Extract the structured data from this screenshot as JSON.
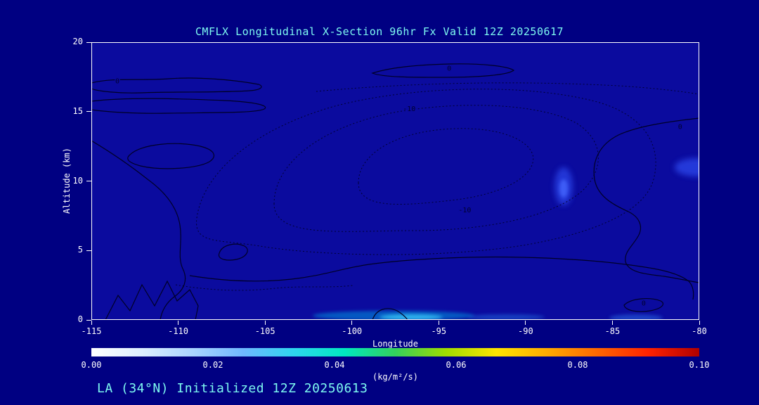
{
  "colors": {
    "background": "#000082",
    "plot_bg": "#0b0b9e",
    "title_text": "#7df9f0",
    "axis_text": "#ffffff",
    "footer_text": "#7df9f0",
    "contour_line": "#000026"
  },
  "chart_data": {
    "type": "contour",
    "title": "CMFLX Longitudinal X-Section 96hr  Fx Valid 12Z 20250617",
    "xlabel": "Longitude",
    "ylabel": "Altitude (km)",
    "xlim": [
      -115,
      -80
    ],
    "ylim": [
      0,
      20
    ],
    "x_ticks": [
      "-115",
      "-110",
      "-105",
      "-100",
      "-95",
      "-90",
      "-85",
      "-80"
    ],
    "y_ticks": [
      "20",
      "15",
      "10",
      "5",
      "0"
    ],
    "grid": false,
    "contour_levels_labeled": [
      "0",
      "-10"
    ],
    "contour_labels_on_plot": [
      {
        "text": "0",
        "x_lon": -113.5,
        "y_km": 17.2
      },
      {
        "text": "0",
        "x_lon": -94.4,
        "y_km": 18.1
      },
      {
        "text": "-10",
        "x_lon": -96.7,
        "y_km": 15.2
      },
      {
        "text": "-10",
        "x_lon": -93.5,
        "y_km": 7.9
      },
      {
        "text": "0",
        "x_lon": -81.1,
        "y_km": 13.9
      },
      {
        "text": "0",
        "x_lon": -83.2,
        "y_km": 1.2
      }
    ],
    "colorbar": {
      "min": 0.0,
      "max": 0.1,
      "ticks": [
        "0.00",
        "0.02",
        "0.04",
        "0.06",
        "0.08",
        "0.10"
      ],
      "units": "(kg/m²/s)",
      "gradient": [
        "#ffffff",
        "#dceeff",
        "#aad4ff",
        "#6fb8ff",
        "#2ed6ee",
        "#00e8c0",
        "#34d05c",
        "#a0dc00",
        "#ffe400",
        "#ffaa00",
        "#ff6600",
        "#ff2200",
        "#b00000"
      ]
    },
    "footer": "LA (34°N) Initialized 12Z 20250613"
  }
}
